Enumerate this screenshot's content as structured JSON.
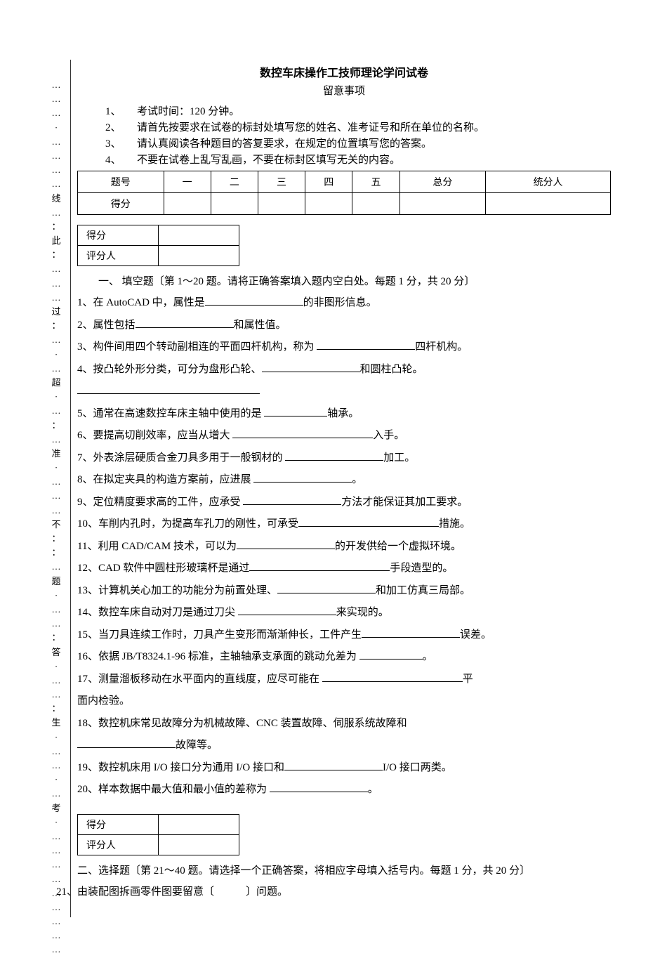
{
  "title": "数控车床操作工技师理论学问试卷",
  "subtitle": "留意事项",
  "instructions": [
    "1、　　考试时间：120 分钟。",
    "2、　　请首先按要求在试卷的标封处填写您的姓名、准考证号和所在单位的名称。",
    "3、　　请认真阅读各种题目的答复要求，在规定的位置填写您的答案。",
    "4、　　不要在试卷上乱写乱画，不要在标封区填写无关的内容。"
  ],
  "scoreTable": {
    "headers": [
      "题号",
      "一",
      "二",
      "三",
      "四",
      "五",
      "总分",
      "统分人"
    ],
    "rowLabel": "得分"
  },
  "miniTable": {
    "r1": "得分",
    "r2": "评分人"
  },
  "section1": {
    "head": "一、 填空题〔第 1～20 题。请将正确答案填入题内空白处。每题 1 分，共 20 分〕",
    "items": [
      {
        "pre": "1、在 AutoCAD 中，属性是",
        "post": "的非图形信息。",
        "w": "blank-m"
      },
      {
        "pre": "2、属性包括",
        "post": "和属性值。",
        "w": "blank-m"
      },
      {
        "pre": "3、构件间用四个转动副相连的平面四杆机构，称为 ",
        "post": "四杆机构。",
        "w": "blank-m"
      },
      {
        "pre": "4、按凸轮外形分类，可分为盘形凸轮、",
        "post": "和圆柱凸轮。",
        "w": "blank-m",
        "extra": true
      },
      {
        "pre": "5、通常在高速数控车床主轴中使用的是 ",
        "post": "轴承。",
        "w": "blank-s"
      },
      {
        "pre": "6、要提高切削效率，应当从增大 ",
        "post": "入手。",
        "w": "blank-l"
      },
      {
        "pre": "7、外表涂层硬质合金刀具多用于一般钢材的 ",
        "post": "加工。",
        "w": "blank-m"
      },
      {
        "pre": "8、在拟定夹具的构造方案前，应进展 ",
        "post": "。",
        "w": "blank-m"
      },
      {
        "pre": "9、定位精度要求高的工件，应承受 ",
        "post": "方法才能保证其加工要求。",
        "w": "blank-m"
      },
      {
        "pre": "10、车削内孔时，为提高车孔刀的刚性，可承受",
        "post": "措施。",
        "w": "blank-l"
      },
      {
        "pre": "11、利用 CAD/CAM 技术，可以为",
        "post": "的开发供给一个虚拟环境。",
        "w": "blank-m"
      },
      {
        "pre": "12、CAD 软件中圆柱形玻璃杯是通过",
        "post": "手段造型的。",
        "w": "blank-l"
      },
      {
        "pre": "13、计算机关心加工的功能分为前置处理、",
        "post": "和加工仿真三局部。",
        "w": "blank-m"
      },
      {
        "pre": "14、数控车床自动对刀是通过刀尖 ",
        "post": "来实现的。",
        "w": "blank-m"
      },
      {
        "pre": "15、当刀具连续工作时，刀具产生变形而渐渐伸长，工件产生",
        "post": "误差。",
        "w": "blank-m"
      },
      {
        "pre": "16、依据 JB/T8324.1-96 标准，主轴轴承支承面的跳动允差为 ",
        "post": "。",
        "w": "blank-s"
      },
      {
        "pre": "17、测量溜板移动在水平面内的直线度，应尽可能在 ",
        "post": "平",
        "w": "blank-l",
        "cont": "面内检验。"
      },
      {
        "pre": "18、数控机床常见故障分为机械故障、CNC 装置故障、伺服系统故障和",
        "post": "",
        "w": "",
        "cont2pre": "",
        "cont2": "故障等。",
        "cont2w": "blank-m"
      },
      {
        "pre": "19、数控机床用 I/O 接口分为通用 I/O 接口和",
        "post": "I/O 接口两类。",
        "w": "blank-m"
      },
      {
        "pre": "20、样本数据中最大值和最小值的差称为 ",
        "post": "。",
        "w": "blank-m"
      }
    ]
  },
  "section2": {
    "head": "二、选择题〔第 21～40 题。请选择一个正确答案，将相应字母填入括号内。每题 1 分，共 20 分〕",
    "q21": "21、由装配图拆画零件图要留意〔　　　〕问题。"
  },
  "sideChars": [
    "…",
    "…",
    "…",
    "·",
    "…",
    "…",
    "…",
    "…",
    "线",
    "…",
    "：",
    "此",
    "：",
    "…",
    "…",
    "…",
    "过",
    "：",
    "…",
    "·",
    "…",
    "超",
    "·",
    "…",
    "：",
    "…",
    "准",
    "·",
    "…",
    "…",
    "…",
    "不",
    "：",
    "：",
    "…",
    "题",
    "·",
    "…",
    "…",
    "：",
    "答",
    "·",
    "…",
    "…",
    "：",
    "生",
    "·",
    "…",
    "…",
    "·",
    "…",
    "考",
    "·",
    "…",
    "…",
    "…",
    "…",
    "…",
    "…",
    "…",
    "…",
    "…"
  ]
}
